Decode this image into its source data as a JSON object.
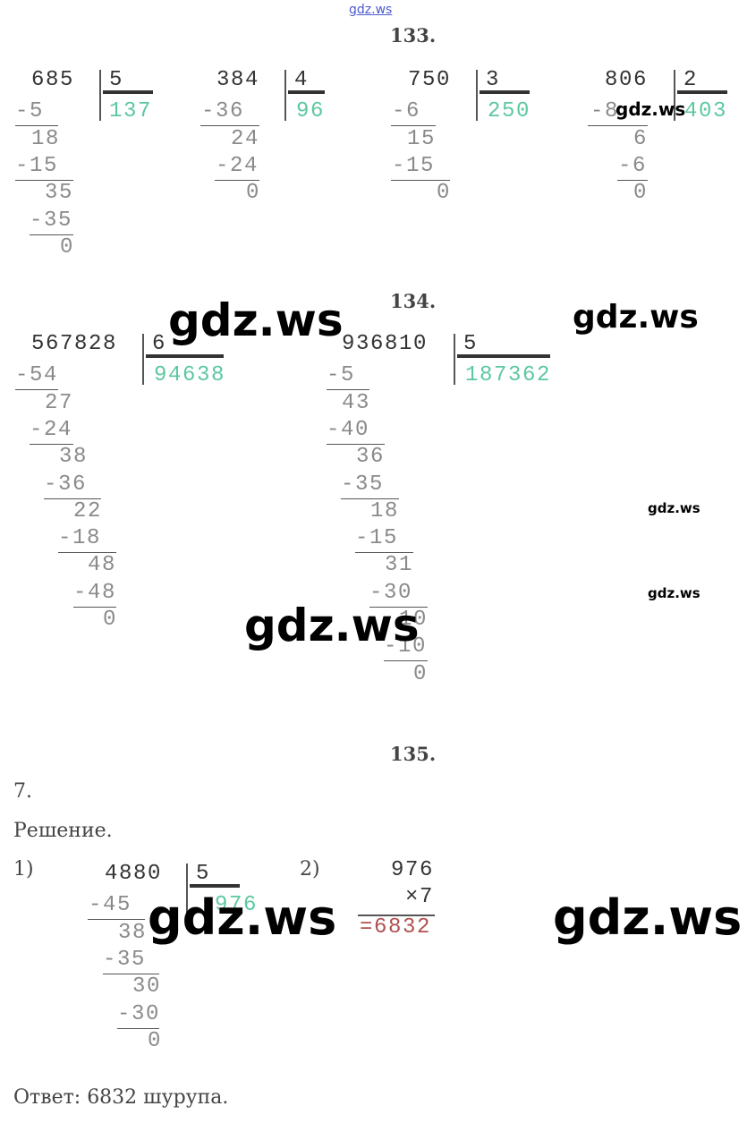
{
  "header_watermark": "gdz.ws",
  "watermark": "gdz.ws",
  "colors": {
    "quotient": "#5cc8a0",
    "result": "#b05050",
    "text": "#333333",
    "steps": "#8a8a8a"
  },
  "tasks": {
    "t133": {
      "title": "133.",
      "divisions": [
        {
          "dividend": "685",
          "divisor": "5",
          "quotient": "137",
          "steps": [
            "-5",
            "18",
            "-15",
            "35",
            "-35",
            "0"
          ]
        },
        {
          "dividend": "384",
          "divisor": "4",
          "quotient": "96",
          "steps": [
            "-36",
            "24",
            "-24",
            "0"
          ]
        },
        {
          "dividend": "750",
          "divisor": "3",
          "quotient": "250",
          "steps": [
            "-6",
            "15",
            "-15",
            "0"
          ]
        },
        {
          "dividend": "806",
          "divisor": "2",
          "quotient": "403",
          "steps": [
            "-8",
            "6",
            "-6",
            "0"
          ]
        }
      ]
    },
    "t134": {
      "title": "134.",
      "divisions": [
        {
          "dividend": "567828",
          "divisor": "6",
          "quotient": "94638",
          "steps": [
            "-54",
            "27",
            "-24",
            "38",
            "-36",
            "22",
            "-18",
            "48",
            "-48",
            "0"
          ]
        },
        {
          "dividend": "936810",
          "divisor": "5",
          "quotient": "187362",
          "steps": [
            "-5",
            "43",
            "-40",
            "36",
            "-35",
            "18",
            "-15",
            "31",
            "-30",
            "10",
            "-10",
            "0"
          ]
        }
      ]
    },
    "t135": {
      "title": "135.",
      "number": "7.",
      "solution_label": "Решение.",
      "step1_label": "1)",
      "step2_label": "2)",
      "division": {
        "dividend": "4880",
        "divisor": "5",
        "quotient": "976",
        "steps": [
          "-45",
          "38",
          "-35",
          "30",
          "-30",
          "0"
        ]
      },
      "multiplication": {
        "multiplicand": "976",
        "multiplier": "×7",
        "result": "=6832"
      },
      "answer": "Ответ: 6832 шурупа."
    }
  }
}
